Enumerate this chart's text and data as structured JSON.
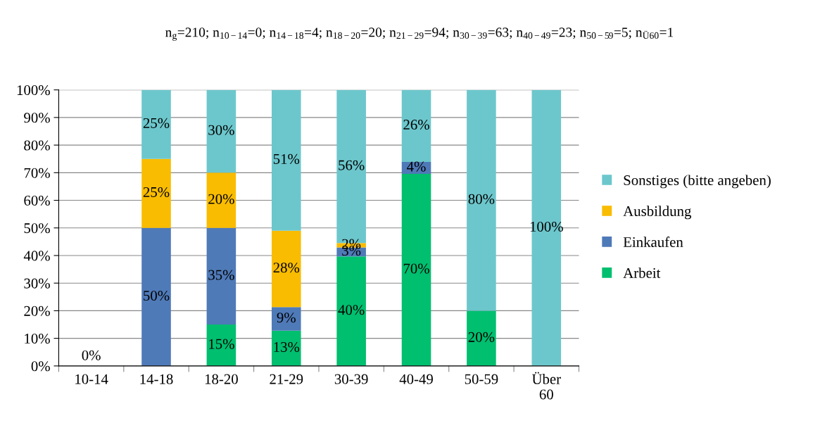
{
  "chart_data": {
    "type": "bar",
    "stacked": true,
    "title": "n$_{g}$=210; n$_{10−14}$=0; n$_{14−18}$=4; n$_{18−20}$=20; n$_{21−29}$=94; n$_{30−39}$=63; n$_{40−49}$=23; n$_{50−59}$=5; n$_{Ü60}$=1",
    "categories": [
      "10-14",
      "14-18",
      "18-20",
      "21-29",
      "30-39",
      "40-49",
      "50-59",
      "Über\n60"
    ],
    "series": [
      {
        "name": "Arbeit",
        "color": "#00bf6f",
        "values": [
          0,
          0,
          15,
          12.8,
          39.7,
          69.6,
          20,
          0
        ],
        "value_labels": [
          "0%",
          null,
          "15%",
          "13%",
          "40%",
          "70%",
          "20%",
          null
        ]
      },
      {
        "name": "Einkaufen",
        "color": "#4f7ab8",
        "values": [
          0,
          50,
          35,
          8.5,
          3.2,
          4.3,
          0,
          0
        ],
        "value_labels": [
          null,
          "50%",
          "35%",
          "9%",
          "3%",
          "4%",
          null,
          null
        ]
      },
      {
        "name": "Ausbildung",
        "color": "#f9bc00",
        "values": [
          0,
          25,
          20,
          27.7,
          1.6,
          0,
          0,
          0
        ],
        "value_labels": [
          null,
          "25%",
          "20%",
          "28%",
          "2%",
          null,
          null,
          null
        ]
      },
      {
        "name": "Sonstiges (bitte angeben)",
        "color": "#6cc7cc",
        "values": [
          0,
          25,
          30,
          51.0,
          55.5,
          26.1,
          80,
          100
        ],
        "value_labels": [
          null,
          "25%",
          "30%",
          "51%",
          "56%",
          "26%",
          "80%",
          "100%"
        ]
      }
    ],
    "ylim": [
      0,
      100
    ],
    "yticks": [
      {
        "value": 0,
        "label": "0%"
      },
      {
        "value": 10,
        "label": "10%"
      },
      {
        "value": 20,
        "label": "20%"
      },
      {
        "value": 30,
        "label": "30%"
      },
      {
        "value": 40,
        "label": "40%"
      },
      {
        "value": 50,
        "label": "50%"
      },
      {
        "value": 60,
        "label": "60%"
      },
      {
        "value": 70,
        "label": "70%"
      },
      {
        "value": 80,
        "label": "80%"
      },
      {
        "value": 90,
        "label": "90%"
      },
      {
        "value": 100,
        "label": "100%"
      }
    ],
    "grid": "y",
    "legend": "right"
  }
}
